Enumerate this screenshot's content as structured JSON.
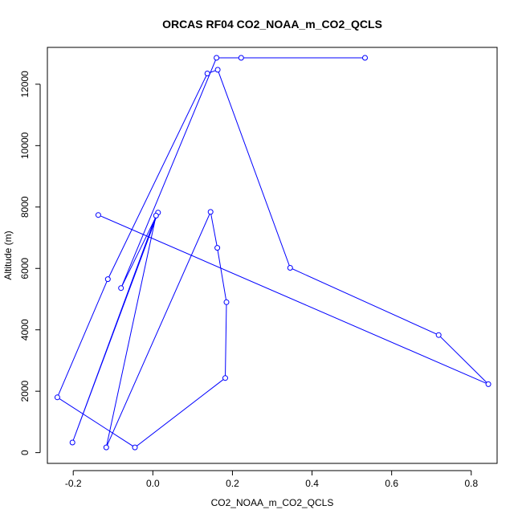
{
  "chart_data": {
    "type": "line",
    "title": "ORCAS RF04 CO2_NOAA_m_CO2_QCLS",
    "xlabel": "CO2_NOAA_m_CO2_QCLS",
    "ylabel": "Altitude (m)",
    "xlim": [
      -0.265,
      0.865
    ],
    "ylim": [
      -350,
      13200
    ],
    "x_ticks": [
      -0.2,
      0.0,
      0.2,
      0.4,
      0.6,
      0.8
    ],
    "x_tick_labels": [
      "-0.2",
      "0.0",
      "0.2",
      "0.4",
      "0.6",
      "0.8"
    ],
    "y_ticks": [
      0,
      2000,
      4000,
      6000,
      8000,
      10000,
      12000
    ],
    "y_tick_labels": [
      "0",
      "2000",
      "4000",
      "6000",
      "8000",
      "10000",
      "12000"
    ],
    "grid": false,
    "series": [
      {
        "color": "#0000ff",
        "marker": "open-circle",
        "points": [
          {
            "x": 0.533,
            "y": 12860
          },
          {
            "x": 0.222,
            "y": 12860
          },
          {
            "x": 0.16,
            "y": 12860
          },
          {
            "x": -0.08,
            "y": 5360
          },
          {
            "x": 0.013,
            "y": 7820
          },
          {
            "x": -0.202,
            "y": 330
          },
          {
            "x": 0.008,
            "y": 7720
          },
          {
            "x": -0.117,
            "y": 170
          },
          {
            "x": 0.145,
            "y": 7840
          },
          {
            "x": 0.162,
            "y": 6670
          },
          {
            "x": 0.185,
            "y": 4900
          },
          {
            "x": 0.182,
            "y": 2430
          },
          {
            "x": -0.045,
            "y": 170
          },
          {
            "x": -0.24,
            "y": 1800
          },
          {
            "x": -0.113,
            "y": 5650
          },
          {
            "x": 0.137,
            "y": 12350
          },
          {
            "x": 0.163,
            "y": 12470
          },
          {
            "x": 0.345,
            "y": 6020
          },
          {
            "x": 0.718,
            "y": 3830
          },
          {
            "x": 0.843,
            "y": 2230
          },
          {
            "x": -0.137,
            "y": 7740
          }
        ]
      }
    ]
  }
}
